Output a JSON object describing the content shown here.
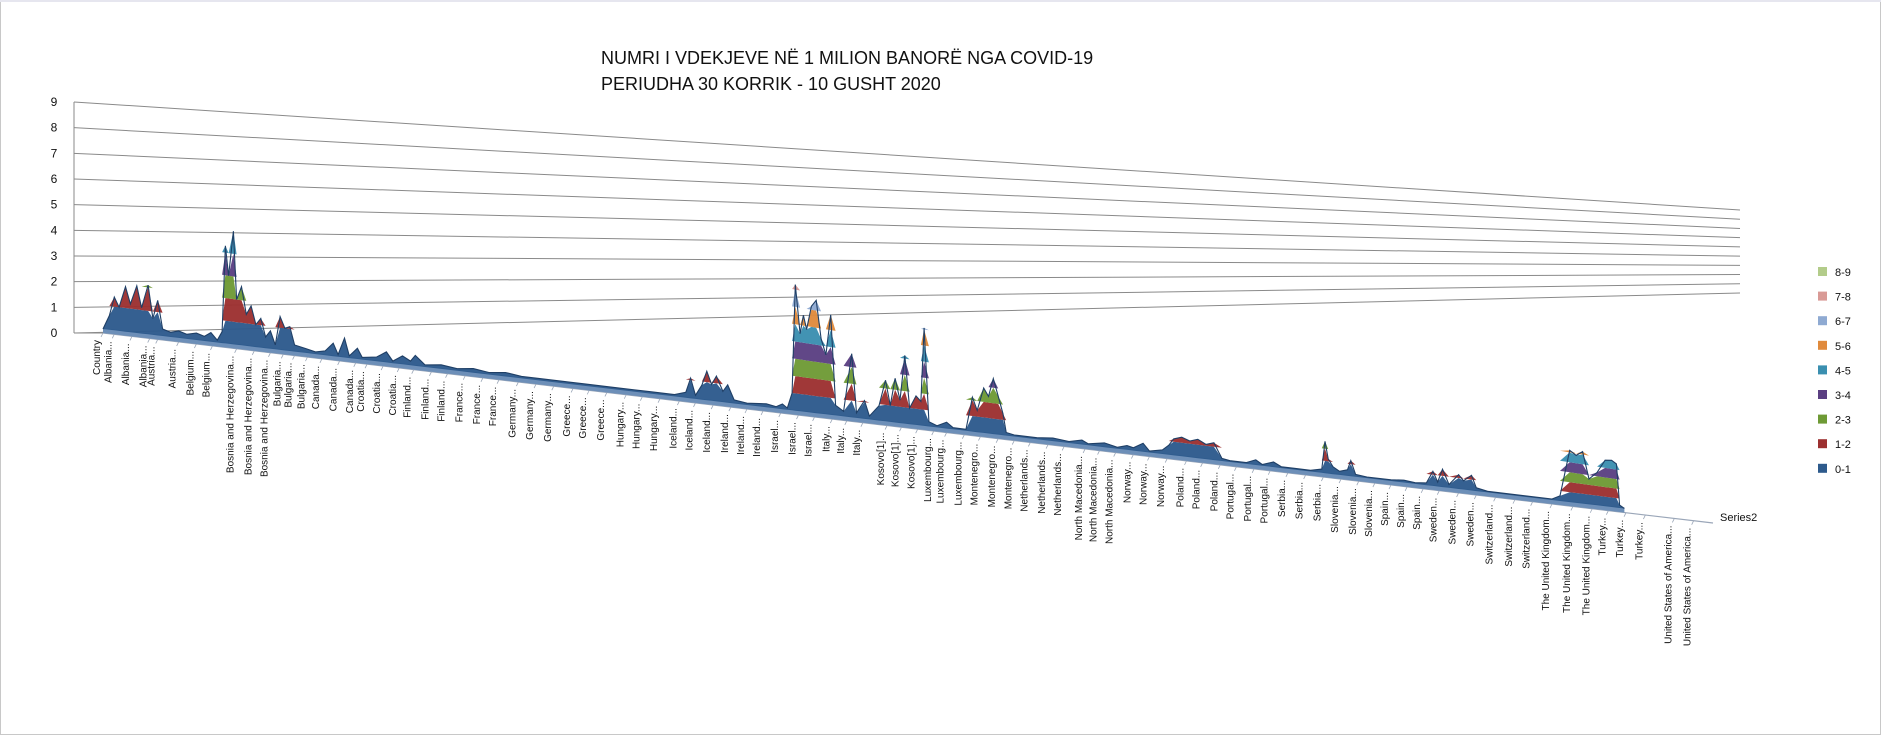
{
  "title_lines": [
    "NUMRI I VDEKJEVE NË 1 MILION  BANORË NGA COVID-19",
    "PERIUDHA 30 KORRIK  - 10 GUSHT  2020"
  ],
  "chart_data": {
    "type": "area",
    "subtype": "3d-surface",
    "title": "NUMRI I VDEKJEVE NË 1 MILION  BANORË NGA COVID-19 / PERIUDHA 30 KORRIK  - 10 GUSHT  2020",
    "ylim": [
      0,
      9
    ],
    "y_ticks": [
      "0",
      "1",
      "2",
      "3",
      "4",
      "5",
      "6",
      "7",
      "8",
      "9"
    ],
    "grid": true,
    "legend_position": "right",
    "depth_series_label": "Series2",
    "legend": [
      {
        "label": "8-9",
        "color": "#b3cc8a"
      },
      {
        "label": "7-8",
        "color": "#d99a96"
      },
      {
        "label": "6-7",
        "color": "#8faad2"
      },
      {
        "label": "5-6",
        "color": "#e08a3c"
      },
      {
        "label": "4-5",
        "color": "#3a8fb0"
      },
      {
        "label": "3-4",
        "color": "#5b3f82"
      },
      {
        "label": "2-3",
        "color": "#6e9a35"
      },
      {
        "label": "1-2",
        "color": "#9c3030"
      },
      {
        "label": "0-1",
        "color": "#2d5a8c"
      }
    ],
    "x_labels": [
      "Country",
      "Albania...",
      "Albania...",
      "Albania...",
      "Austria...",
      "Austria...",
      "Belgium...",
      "Belgium...",
      "Bosnia and Herzegovina...",
      "Bosnia and Herzegovina...",
      "Bosnia and Herzegovina...",
      "Bulgaria...",
      "Bulgaria...",
      "Bulgaria...",
      "Canada...",
      "Canada...",
      "Canada...",
      "Croatia...",
      "Croatia...",
      "Croatia...",
      "Finland...",
      "Finland...",
      "Finland...",
      "France...",
      "France...",
      "France...",
      "Germany...",
      "Germany...",
      "Germany...",
      "Greece...",
      "Greece...",
      "Greece...",
      "Hungary...",
      "Hungary...",
      "Hungary...",
      "Iceland...",
      "Iceland...",
      "Iceland...",
      "Ireland...",
      "Ireland...",
      "Ireland...",
      "Israel...",
      "Israel...",
      "Israel...",
      "Italy...",
      "Italy...",
      "Italy...",
      "Kosovo[1]...",
      "Kosovo[1]...",
      "Kosovo[1]...",
      "Luxembourg...",
      "Luxembourg...",
      "Luxembourg...",
      "Montenegro...",
      "Montenegro...",
      "Montenegro...",
      "Netherlands...",
      "Netherlands...",
      "Netherlands...",
      "North Macedonia...",
      "North Macedonia...",
      "North Macedonia...",
      "Norway...",
      "Norway...",
      "Norway...",
      "Poland...",
      "Poland...",
      "Poland...",
      "Portugal...",
      "Portugal...",
      "Portugal...",
      "Serbia...",
      "Serbia...",
      "Serbia...",
      "Slovenia...",
      "Slovenia...",
      "Slovenia...",
      "Spain...",
      "Spain...",
      "Spain...",
      "Sweden...",
      "Sweden...",
      "Sweden...",
      "Switzerland...",
      "Switzerland...",
      "Switzerland...",
      "The United Kingdom...",
      "The United Kingdom...",
      "The United Kingdom...",
      "Turkey...",
      "Turkey...",
      "Turkey...",
      "United States of America...",
      "United States of America..."
    ],
    "label_t": [
      0.0,
      0.007,
      0.018,
      0.029,
      0.034,
      0.047,
      0.058,
      0.068,
      0.083,
      0.094,
      0.104,
      0.112,
      0.119,
      0.127,
      0.136,
      0.147,
      0.157,
      0.164,
      0.174,
      0.184,
      0.193,
      0.204,
      0.214,
      0.225,
      0.236,
      0.246,
      0.258,
      0.269,
      0.28,
      0.292,
      0.302,
      0.313,
      0.325,
      0.335,
      0.346,
      0.358,
      0.368,
      0.379,
      0.39,
      0.4,
      0.41,
      0.421,
      0.432,
      0.442,
      0.453,
      0.462,
      0.472,
      0.487,
      0.496,
      0.506,
      0.516,
      0.524,
      0.535,
      0.545,
      0.556,
      0.566,
      0.576,
      0.587,
      0.597,
      0.61,
      0.619,
      0.629,
      0.64,
      0.65,
      0.661,
      0.673,
      0.683,
      0.694,
      0.704,
      0.715,
      0.725,
      0.736,
      0.747,
      0.758,
      0.769,
      0.78,
      0.79,
      0.8,
      0.81,
      0.82,
      0.83,
      0.842,
      0.853,
      0.865,
      0.877,
      0.888,
      0.9,
      0.913,
      0.925,
      0.935,
      0.946,
      0.958,
      0.976,
      0.988
    ],
    "series": [
      {
        "name": "Series1",
        "points": [
          [
            0.0,
            0
          ],
          [
            0.004,
            0.6
          ],
          [
            0.007,
            1.4
          ],
          [
            0.01,
            1.0
          ],
          [
            0.014,
            1.9
          ],
          [
            0.017,
            1.2
          ],
          [
            0.021,
            2.0
          ],
          [
            0.024,
            1.1
          ],
          [
            0.028,
            2.1
          ],
          [
            0.031,
            0.7
          ],
          [
            0.034,
            1.5
          ],
          [
            0.037,
            0.3
          ],
          [
            0.042,
            0.2
          ],
          [
            0.047,
            0.3
          ],
          [
            0.052,
            0.2
          ],
          [
            0.058,
            0.3
          ],
          [
            0.063,
            0.2
          ],
          [
            0.067,
            0.4
          ],
          [
            0.071,
            0.1
          ],
          [
            0.074,
            0.5
          ],
          [
            0.076,
            4.3
          ],
          [
            0.078,
            3.0
          ],
          [
            0.081,
            5.0
          ],
          [
            0.083,
            2.0
          ],
          [
            0.086,
            2.6
          ],
          [
            0.089,
            1.4
          ],
          [
            0.092,
            1.8
          ],
          [
            0.095,
            1.0
          ],
          [
            0.098,
            1.3
          ],
          [
            0.101,
            0.5
          ],
          [
            0.104,
            0.8
          ],
          [
            0.107,
            0.2
          ],
          [
            0.11,
            1.5
          ],
          [
            0.113,
            1.0
          ],
          [
            0.116,
            1.1
          ],
          [
            0.119,
            0.3
          ],
          [
            0.126,
            0.2
          ],
          [
            0.132,
            0.1
          ],
          [
            0.138,
            0.2
          ],
          [
            0.143,
            0.6
          ],
          [
            0.146,
            0.1
          ],
          [
            0.15,
            0.9
          ],
          [
            0.153,
            0.1
          ],
          [
            0.158,
            0.5
          ],
          [
            0.161,
            0.1
          ],
          [
            0.17,
            0.2
          ],
          [
            0.176,
            0.5
          ],
          [
            0.18,
            0.1
          ],
          [
            0.186,
            0.4
          ],
          [
            0.191,
            0.2
          ],
          [
            0.194,
            0.5
          ],
          [
            0.2,
            0.1
          ],
          [
            0.21,
            0.2
          ],
          [
            0.22,
            0.1
          ],
          [
            0.23,
            0.2
          ],
          [
            0.24,
            0.1
          ],
          [
            0.25,
            0.2
          ],
          [
            0.26,
            0.1
          ],
          [
            0.27,
            0.1
          ],
          [
            0.285,
            0.1
          ],
          [
            0.3,
            0.1
          ],
          [
            0.32,
            0.1
          ],
          [
            0.34,
            0.1
          ],
          [
            0.355,
            0.1
          ],
          [
            0.362,
            0.3
          ],
          [
            0.365,
            1.1
          ],
          [
            0.368,
            0.2
          ],
          [
            0.372,
            0.8
          ],
          [
            0.375,
            1.6
          ],
          [
            0.378,
            0.9
          ],
          [
            0.381,
            1.4
          ],
          [
            0.385,
            0.6
          ],
          [
            0.388,
            1.0
          ],
          [
            0.392,
            0.2
          ],
          [
            0.4,
            0.1
          ],
          [
            0.412,
            0.2
          ],
          [
            0.418,
            0.1
          ],
          [
            0.422,
            0.3
          ],
          [
            0.425,
            0.1
          ],
          [
            0.428,
            1.0
          ],
          [
            0.43,
            7.3
          ],
          [
            0.433,
            4.5
          ],
          [
            0.435,
            5.6
          ],
          [
            0.437,
            4.8
          ],
          [
            0.44,
            6.2
          ],
          [
            0.443,
            6.6
          ],
          [
            0.446,
            4.4
          ],
          [
            0.449,
            3.5
          ],
          [
            0.452,
            5.9
          ],
          [
            0.455,
            0.6
          ],
          [
            0.46,
            0.3
          ],
          [
            0.465,
            3.8
          ],
          [
            0.468,
            0.3
          ],
          [
            0.473,
            1.1
          ],
          [
            0.476,
            0.2
          ],
          [
            0.482,
            0.9
          ],
          [
            0.486,
            2.5
          ],
          [
            0.489,
            1.0
          ],
          [
            0.492,
            2.7
          ],
          [
            0.495,
            1.4
          ],
          [
            0.498,
            4.2
          ],
          [
            0.501,
            1.0
          ],
          [
            0.505,
            1.8
          ],
          [
            0.508,
            1.5
          ],
          [
            0.51,
            6.1
          ],
          [
            0.513,
            0.3
          ],
          [
            0.518,
            0.1
          ],
          [
            0.524,
            0.4
          ],
          [
            0.528,
            0.1
          ],
          [
            0.536,
            0.1
          ],
          [
            0.54,
            2.2
          ],
          [
            0.543,
            1.4
          ],
          [
            0.547,
            2.9
          ],
          [
            0.55,
            2.4
          ],
          [
            0.553,
            3.6
          ],
          [
            0.556,
            2.5
          ],
          [
            0.559,
            1.4
          ],
          [
            0.561,
            0.2
          ],
          [
            0.566,
            0.1
          ],
          [
            0.58,
            0.1
          ],
          [
            0.59,
            0.2
          ],
          [
            0.6,
            0.1
          ],
          [
            0.608,
            0.3
          ],
          [
            0.612,
            0.1
          ],
          [
            0.622,
            0.3
          ],
          [
            0.63,
            0.1
          ],
          [
            0.636,
            0.3
          ],
          [
            0.64,
            0.2
          ],
          [
            0.646,
            0.6
          ],
          [
            0.65,
            0.1
          ],
          [
            0.658,
            0.3
          ],
          [
            0.662,
            0.7
          ],
          [
            0.665,
            1.2
          ],
          [
            0.67,
            1.4
          ],
          [
            0.675,
            1.2
          ],
          [
            0.68,
            1.4
          ],
          [
            0.685,
            1.1
          ],
          [
            0.69,
            1.3
          ],
          [
            0.695,
            0.2
          ],
          [
            0.7,
            0.1
          ],
          [
            0.71,
            0.1
          ],
          [
            0.716,
            0.4
          ],
          [
            0.72,
            0.1
          ],
          [
            0.727,
            0.4
          ],
          [
            0.732,
            0.1
          ],
          [
            0.74,
            0.1
          ],
          [
            0.75,
            0.1
          ],
          [
            0.757,
            0.3
          ],
          [
            0.759,
            2.6
          ],
          [
            0.761,
            1.2
          ],
          [
            0.764,
            0.6
          ],
          [
            0.768,
            0.3
          ],
          [
            0.773,
            0.5
          ],
          [
            0.775,
            1.3
          ],
          [
            0.778,
            0.2
          ],
          [
            0.785,
            0.1
          ],
          [
            0.8,
            0.1
          ],
          [
            0.808,
            0.2
          ],
          [
            0.815,
            0.1
          ],
          [
            0.822,
            0.2
          ],
          [
            0.826,
            1.3
          ],
          [
            0.829,
            0.4
          ],
          [
            0.832,
            1.6
          ],
          [
            0.836,
            0.3
          ],
          [
            0.842,
            1.3
          ],
          [
            0.845,
            0.8
          ],
          [
            0.85,
            1.4
          ],
          [
            0.853,
            0.3
          ],
          [
            0.86,
            0.1
          ],
          [
            0.88,
            0.1
          ],
          [
            0.9,
            0.1
          ],
          [
            0.905,
            0.5
          ],
          [
            0.911,
            5.2
          ],
          [
            0.915,
            4.8
          ],
          [
            0.919,
            5.3
          ],
          [
            0.923,
            2.6
          ],
          [
            0.928,
            3.4
          ],
          [
            0.933,
            4.8
          ],
          [
            0.937,
            4.9
          ],
          [
            0.94,
            4.6
          ],
          [
            0.942,
            0.3
          ],
          [
            0.945,
            0
          ]
        ]
      }
    ]
  }
}
